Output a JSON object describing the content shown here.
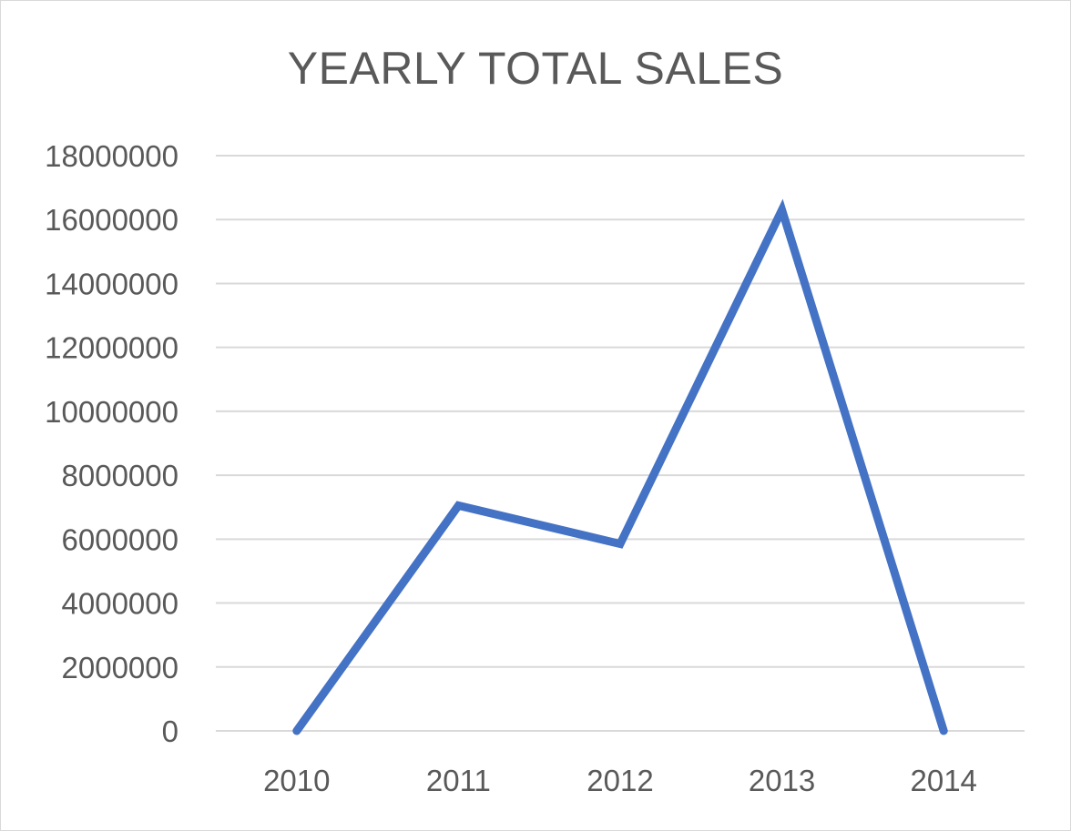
{
  "chart_data": {
    "type": "line",
    "title": "YEARLY TOTAL SALES",
    "xlabel": "",
    "ylabel": "",
    "categories": [
      "2010",
      "2011",
      "2012",
      "2013",
      "2014"
    ],
    "series": [
      {
        "values": [
          0,
          7050000,
          5850000,
          16300000,
          0
        ],
        "color": "#4472C4"
      }
    ],
    "ylim": [
      0,
      18000000
    ],
    "yticks": [
      0,
      2000000,
      4000000,
      6000000,
      8000000,
      10000000,
      12000000,
      14000000,
      16000000,
      18000000
    ],
    "ytick_labels": [
      "0",
      "2000000",
      "4000000",
      "6000000",
      "8000000",
      "10000000",
      "12000000",
      "14000000",
      "16000000",
      "18000000"
    ],
    "grid": true,
    "legend": "none"
  }
}
